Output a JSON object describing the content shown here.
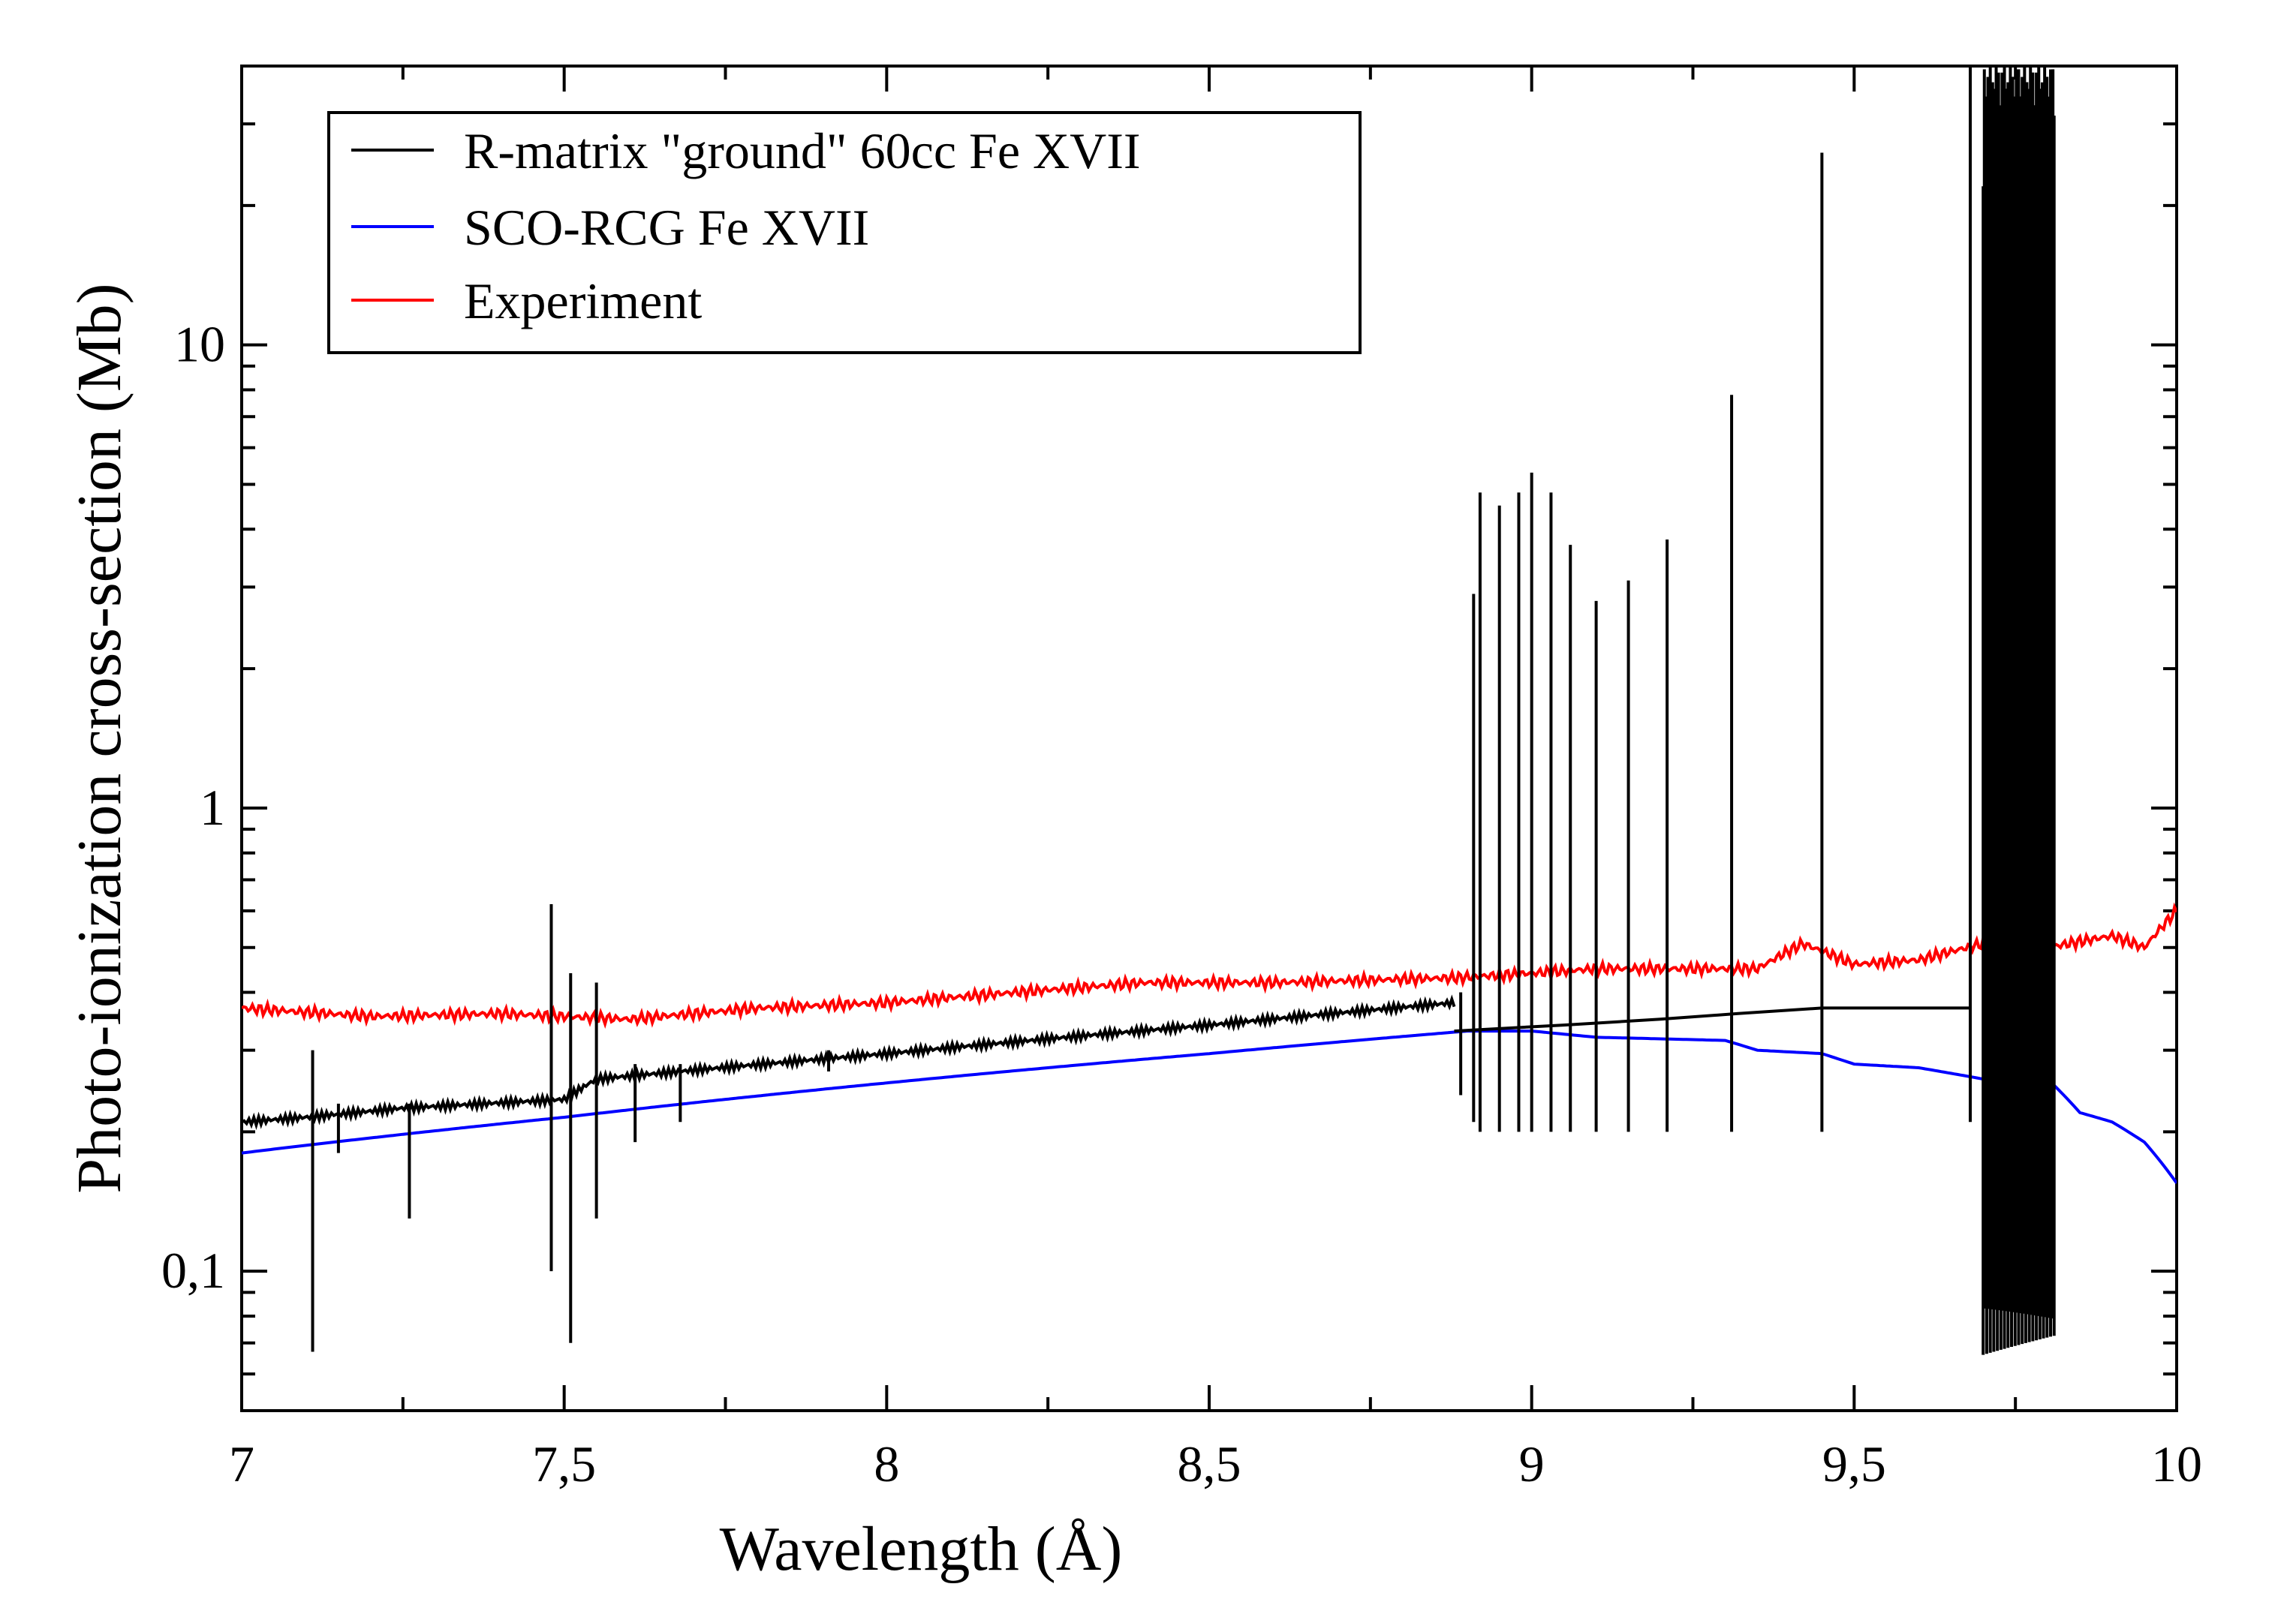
{
  "chart_data": {
    "type": "line",
    "title": "",
    "xlabel": "Wavelength (Å)",
    "ylabel": "Photo-ionization cross-section (Mb)",
    "xlim": [
      7,
      10
    ],
    "ylim": [
      0.05,
      40
    ],
    "yscale": "log",
    "x_ticks": [
      {
        "value": 7,
        "label": "7"
      },
      {
        "value": 7.5,
        "label": "7,5"
      },
      {
        "value": 8,
        "label": "8"
      },
      {
        "value": 8.5,
        "label": "8,5"
      },
      {
        "value": 9,
        "label": "9"
      },
      {
        "value": 9.5,
        "label": "9,5"
      },
      {
        "value": 10,
        "label": "10"
      }
    ],
    "y_ticks": [
      {
        "value": 0.1,
        "label": "0,1"
      },
      {
        "value": 1,
        "label": "1"
      },
      {
        "value": 10,
        "label": "10"
      }
    ],
    "legend_position": "top-left",
    "series": [
      {
        "name": "R-matrix \"ground\" 60cc Fe XVII",
        "color": "#000000",
        "style": "resonances",
        "background": {
          "x": [
            7.0,
            7.1,
            7.25,
            7.5,
            7.55,
            8.0,
            8.5,
            8.88
          ],
          "y": [
            0.21,
            0.215,
            0.225,
            0.235,
            0.26,
            0.295,
            0.34,
            0.38
          ]
        },
        "x2": [
          8.88,
          9.05,
          9.2,
          9.32,
          9.45,
          9.6,
          9.68
        ],
        "y2": [
          0.33,
          0.34,
          0.35,
          0.36,
          0.37,
          0.37,
          0.37
        ],
        "resonances": [
          {
            "x": 7.11,
            "peak": 0.3,
            "dip": 0.067
          },
          {
            "x": 7.15,
            "peak": 0.23,
            "dip": 0.18
          },
          {
            "x": 7.26,
            "peak": 0.23,
            "dip": 0.13
          },
          {
            "x": 7.48,
            "peak": 0.62,
            "dip": 0.1
          },
          {
            "x": 7.51,
            "peak": 0.44,
            "dip": 0.07
          },
          {
            "x": 7.55,
            "peak": 0.42,
            "dip": 0.13
          },
          {
            "x": 7.61,
            "peak": 0.28,
            "dip": 0.19
          },
          {
            "x": 7.68,
            "peak": 0.28,
            "dip": 0.21
          },
          {
            "x": 7.91,
            "peak": 0.3,
            "dip": 0.27
          },
          {
            "x": 8.89,
            "peak": 0.4,
            "dip": 0.24
          },
          {
            "x": 8.91,
            "peak": 2.9,
            "dip": 0.21
          },
          {
            "x": 8.92,
            "peak": 4.8,
            "dip": 0.2
          },
          {
            "x": 8.95,
            "peak": 4.5,
            "dip": 0.2
          },
          {
            "x": 8.98,
            "peak": 4.8,
            "dip": 0.2
          },
          {
            "x": 9.0,
            "peak": 5.3,
            "dip": 0.2
          },
          {
            "x": 9.03,
            "peak": 4.8,
            "dip": 0.2
          },
          {
            "x": 9.06,
            "peak": 3.7,
            "dip": 0.2
          },
          {
            "x": 9.1,
            "peak": 2.8,
            "dip": 0.2
          },
          {
            "x": 9.15,
            "peak": 3.1,
            "dip": 0.2
          },
          {
            "x": 9.21,
            "peak": 3.8,
            "dip": 0.2
          },
          {
            "x": 9.31,
            "peak": 7.8,
            "dip": 0.2
          },
          {
            "x": 9.45,
            "peak": 26,
            "dip": 0.2
          },
          {
            "x": 9.68,
            "peak": 40,
            "dip": 0.21
          }
        ],
        "dense_band": {
          "x_start": 9.7,
          "x_end": 9.81,
          "top": 40,
          "bottom": 0.066
        }
      },
      {
        "name": "SCO-RCG Fe XVII",
        "color": "#0000ff",
        "x": [
          7.0,
          7.5,
          8.0,
          8.5,
          8.9,
          9.0,
          9.1,
          9.3,
          9.35,
          9.45,
          9.5,
          9.6,
          9.7,
          9.75,
          9.8,
          9.85,
          9.9,
          9.95,
          10.0
        ],
        "y": [
          0.18,
          0.215,
          0.255,
          0.295,
          0.33,
          0.33,
          0.32,
          0.315,
          0.3,
          0.295,
          0.28,
          0.275,
          0.26,
          0.255,
          0.26,
          0.22,
          0.21,
          0.19,
          0.155
        ]
      },
      {
        "name": "Experiment",
        "color": "#ff0000",
        "x": [
          7.0,
          7.2,
          7.4,
          7.5,
          7.6,
          7.8,
          8.0,
          8.2,
          8.4,
          8.6,
          8.88,
          9.0,
          9.1,
          9.2,
          9.3,
          9.35,
          9.42,
          9.5,
          9.6,
          9.7,
          9.8,
          9.9,
          9.95,
          10.0
        ],
        "y": [
          0.37,
          0.355,
          0.36,
          0.355,
          0.35,
          0.37,
          0.38,
          0.4,
          0.42,
          0.42,
          0.43,
          0.44,
          0.45,
          0.45,
          0.45,
          0.45,
          0.51,
          0.46,
          0.47,
          0.51,
          0.5,
          0.53,
          0.5,
          0.6
        ]
      }
    ]
  }
}
